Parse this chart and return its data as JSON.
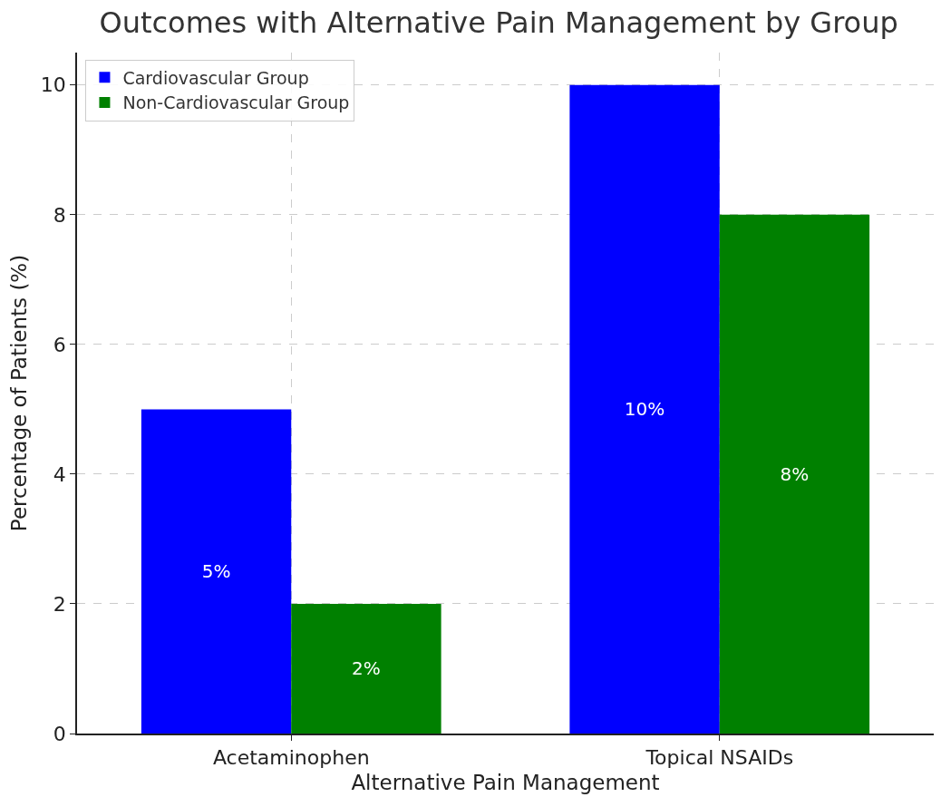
{
  "chart_data": {
    "type": "bar",
    "title": "Outcomes with Alternative Pain Management by Group",
    "xlabel": "Alternative Pain Management",
    "ylabel": "Percentage of Patients (%)",
    "categories": [
      "Acetaminophen",
      "Topical NSAIDs"
    ],
    "series": [
      {
        "name": "Cardiovascular Group",
        "color": "#0000ff",
        "values": [
          5,
          10
        ],
        "value_labels": [
          "5%",
          "10%"
        ]
      },
      {
        "name": "Non-Cardiovascular Group",
        "color": "#008000",
        "values": [
          2,
          8
        ],
        "value_labels": [
          "2%",
          "8%"
        ]
      }
    ],
    "ylim": [
      0,
      10.5
    ],
    "yticks": [
      0,
      2,
      4,
      6,
      8,
      10
    ],
    "grid": true,
    "legend": "top left"
  }
}
